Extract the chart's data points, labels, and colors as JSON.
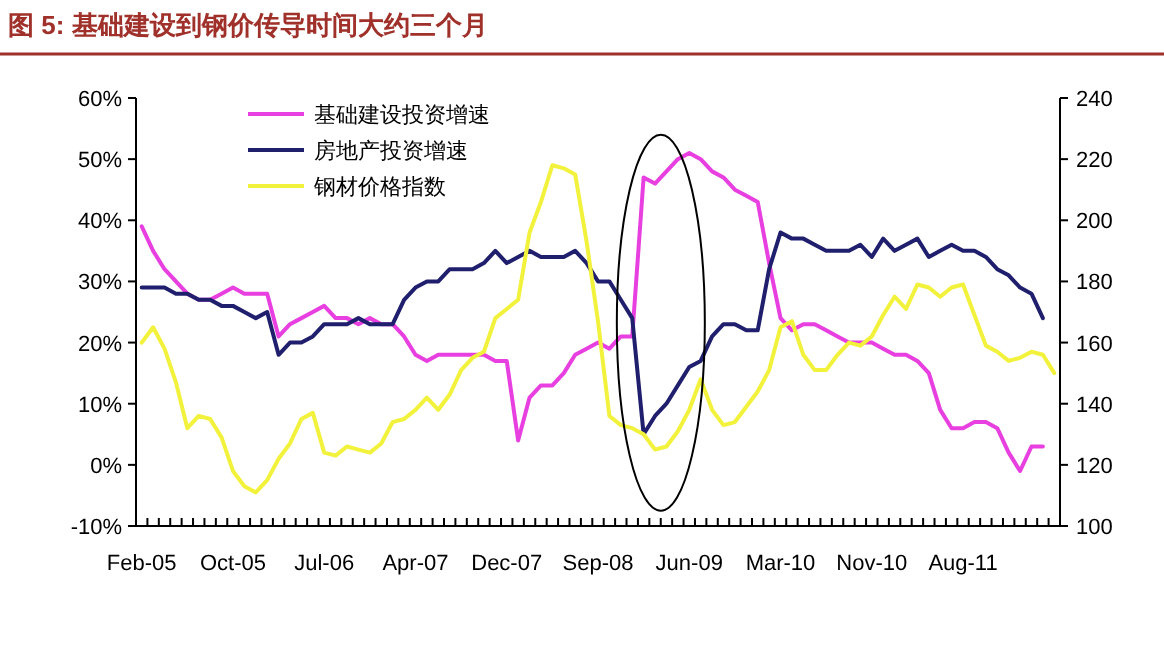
{
  "chart_data": {
    "type": "line",
    "title": "图 5: 基础建设到钢价传导时间大约三个月",
    "categories": [
      "Feb-05",
      null,
      null,
      null,
      null,
      null,
      null,
      null,
      "Oct-05",
      null,
      null,
      null,
      null,
      null,
      null,
      null,
      "Jul-06",
      null,
      null,
      null,
      null,
      null,
      null,
      null,
      "Apr-07",
      null,
      null,
      null,
      null,
      null,
      null,
      null,
      "Dec-07",
      null,
      null,
      null,
      null,
      null,
      null,
      null,
      "Sep-08",
      null,
      null,
      null,
      null,
      null,
      null,
      null,
      "Jun-09",
      null,
      null,
      null,
      null,
      null,
      null,
      null,
      "Mar-10",
      null,
      null,
      null,
      null,
      null,
      null,
      null,
      "Nov-10",
      null,
      null,
      null,
      null,
      null,
      null,
      null,
      "Aug-11",
      null,
      null,
      null,
      null,
      null,
      null,
      null,
      null
    ],
    "series": [
      {
        "name": "基础建设投资增速",
        "color": "#e83fe0",
        "axis": "y",
        "values": [
          39,
          35,
          32,
          30,
          28,
          27,
          27,
          28,
          29,
          28,
          28,
          28,
          21,
          23,
          24,
          25,
          26,
          24,
          24,
          23,
          24,
          23,
          23,
          21,
          18,
          17,
          18,
          18,
          18,
          18,
          18,
          17,
          17,
          4,
          11,
          13,
          13,
          15,
          18,
          19,
          20,
          19,
          21,
          21,
          47,
          46,
          48,
          50,
          51,
          50,
          48,
          47,
          45,
          44,
          43,
          33,
          24,
          22,
          23,
          23,
          22,
          21,
          20,
          20,
          20,
          19,
          18,
          18,
          17,
          15,
          9,
          6,
          6,
          7,
          7,
          6,
          2,
          -1,
          3,
          3,
          null
        ]
      },
      {
        "name": "房地产投资增速",
        "color": "#1f1f6e",
        "axis": "y",
        "values": [
          29,
          29,
          29,
          28,
          28,
          27,
          27,
          26,
          26,
          25,
          24,
          25,
          18,
          20,
          20,
          21,
          23,
          23,
          23,
          24,
          23,
          23,
          23,
          27,
          29,
          30,
          30,
          32,
          32,
          32,
          33,
          35,
          33,
          34,
          35,
          34,
          34,
          34,
          35,
          33,
          30,
          30,
          27,
          24,
          5,
          8,
          10,
          13,
          16,
          17,
          21,
          23,
          23,
          22,
          22,
          32,
          38,
          37,
          37,
          36,
          35,
          35,
          35,
          36,
          34,
          37,
          35,
          36,
          37,
          34,
          35,
          36,
          35,
          35,
          34,
          32,
          31,
          29,
          28,
          24,
          null
        ]
      },
      {
        "name": "钢材价格指数",
        "color": "#f2f23c",
        "axis": "y2",
        "values": [
          160,
          165,
          158,
          147,
          132,
          136,
          135,
          129,
          118,
          113,
          111,
          115,
          122,
          127,
          135,
          137,
          124,
          123,
          126,
          125,
          124,
          127,
          134,
          135,
          138,
          142,
          138,
          143,
          151,
          155,
          157,
          168,
          171,
          174,
          196,
          206,
          218,
          217,
          215,
          193,
          167,
          136,
          133,
          132,
          130,
          125,
          126,
          131,
          138,
          148,
          138,
          133,
          134,
          139,
          144,
          151,
          165,
          167,
          156,
          151,
          151,
          156,
          160,
          159,
          162,
          169,
          175,
          171,
          179,
          178,
          175,
          178,
          179,
          169,
          159,
          157,
          154,
          155,
          157,
          156,
          150
        ]
      }
    ],
    "ylim": [
      -10,
      60
    ],
    "yticks": [
      {
        "value": -10,
        "label": "-10%"
      },
      {
        "value": 0,
        "label": "0%"
      },
      {
        "value": 10,
        "label": "10%"
      },
      {
        "value": 20,
        "label": "20%"
      },
      {
        "value": 30,
        "label": "30%"
      },
      {
        "value": 40,
        "label": "40%"
      },
      {
        "value": 50,
        "label": "50%"
      },
      {
        "value": 60,
        "label": "60%"
      }
    ],
    "y2lim": [
      100,
      240
    ],
    "y2ticks": [
      100,
      120,
      140,
      160,
      180,
      200,
      220,
      240
    ],
    "legend": "top left",
    "marker": "none",
    "line_style": "solid"
  }
}
